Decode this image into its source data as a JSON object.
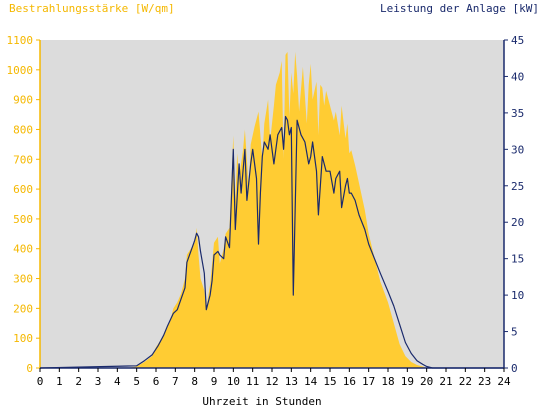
{
  "chart_data": {
    "type": "area",
    "left_axis_title": "Bestrahlungsstärke [W/qm]",
    "right_axis_title": "Leistung der Anlage [kW]",
    "xlabel": "Uhrzeit in Stunden",
    "x_range": [
      0,
      24
    ],
    "x_ticks": [
      0,
      1,
      2,
      3,
      4,
      5,
      6,
      7,
      8,
      9,
      10,
      11,
      12,
      13,
      14,
      15,
      16,
      17,
      18,
      19,
      20,
      21,
      22,
      23,
      24
    ],
    "y_left_range": [
      0,
      1100
    ],
    "y_left_ticks": [
      0,
      100,
      200,
      300,
      400,
      500,
      600,
      700,
      800,
      900,
      1000,
      1100
    ],
    "y_right_range": [
      0,
      45
    ],
    "y_right_ticks": [
      0,
      5,
      10,
      15,
      20,
      25,
      30,
      35,
      40,
      45
    ],
    "grid": false,
    "colors": {
      "irradiance": "#ffcc33",
      "power": "#1a2a6c",
      "plot_bg": "#dcdcdc",
      "left_axis": "#f5b800",
      "right_axis": "#1a2a6c"
    },
    "series": [
      {
        "name": "Bestrahlungsstärke [W/qm]",
        "axis": "left",
        "x": [
          0,
          4.5,
          5.0,
          5.4,
          5.8,
          6.0,
          6.3,
          6.5,
          6.7,
          6.9,
          7.1,
          7.3,
          7.5,
          7.6,
          7.8,
          8.0,
          8.1,
          8.2,
          8.3,
          8.5,
          8.6,
          8.8,
          8.9,
          9.0,
          9.2,
          9.3,
          9.5,
          9.6,
          9.8,
          10.0,
          10.1,
          10.2,
          10.3,
          10.5,
          10.6,
          10.8,
          10.9,
          11.1,
          11.3,
          11.5,
          11.6,
          11.8,
          11.9,
          12.1,
          12.2,
          12.4,
          12.5,
          12.6,
          12.7,
          12.8,
          12.9,
          13.0,
          13.1,
          13.2,
          13.3,
          13.4,
          13.6,
          13.8,
          13.9,
          14.0,
          14.1,
          14.3,
          14.4,
          14.5,
          14.6,
          14.7,
          14.8,
          15.0,
          15.2,
          15.3,
          15.5,
          15.6,
          15.8,
          15.9,
          16.0,
          16.1,
          16.3,
          16.5,
          16.8,
          17.0,
          17.3,
          17.6,
          18.0,
          18.3,
          18.6,
          18.9,
          19.2,
          19.5,
          19.8,
          20.0,
          20.3,
          20.6,
          21.0,
          24
        ],
        "y": [
          0,
          0,
          5,
          20,
          40,
          70,
          100,
          130,
          150,
          200,
          220,
          250,
          300,
          380,
          400,
          420,
          470,
          380,
          300,
          260,
          200,
          280,
          350,
          420,
          440,
          350,
          400,
          450,
          470,
          780,
          560,
          720,
          640,
          730,
          800,
          600,
          750,
          810,
          860,
          700,
          820,
          900,
          760,
          880,
          950,
          990,
          1030,
          700,
          1050,
          1060,
          840,
          990,
          920,
          1060,
          980,
          860,
          1010,
          820,
          950,
          1020,
          900,
          960,
          780,
          950,
          940,
          880,
          930,
          880,
          830,
          860,
          780,
          880,
          770,
          820,
          720,
          730,
          680,
          620,
          530,
          450,
          370,
          290,
          220,
          150,
          80,
          40,
          20,
          10,
          5,
          0,
          0,
          0,
          0,
          0
        ]
      },
      {
        "name": "Leistung der Anlage [kW]",
        "axis": "right",
        "x": [
          0,
          5.0,
          5.4,
          5.8,
          6.1,
          6.4,
          6.6,
          6.9,
          7.1,
          7.3,
          7.5,
          7.6,
          7.8,
          8.0,
          8.1,
          8.2,
          8.3,
          8.5,
          8.6,
          8.8,
          8.9,
          9.0,
          9.2,
          9.3,
          9.5,
          9.6,
          9.8,
          10.0,
          10.1,
          10.3,
          10.4,
          10.6,
          10.7,
          10.9,
          11.0,
          11.2,
          11.3,
          11.4,
          11.5,
          11.6,
          11.8,
          11.9,
          12.1,
          12.3,
          12.5,
          12.6,
          12.7,
          12.8,
          12.9,
          13.0,
          13.1,
          13.3,
          13.5,
          13.7,
          13.9,
          14.0,
          14.1,
          14.3,
          14.4,
          14.6,
          14.8,
          15.0,
          15.2,
          15.3,
          15.5,
          15.6,
          15.8,
          15.9,
          16.0,
          16.1,
          16.3,
          16.5,
          16.8,
          17.0,
          17.3,
          17.6,
          18.0,
          18.3,
          18.6,
          18.9,
          19.2,
          19.5,
          19.8,
          20.0,
          20.3,
          20.6,
          21.0,
          24
        ],
        "y": [
          0,
          0.3,
          1,
          1.8,
          3,
          4.5,
          5.8,
          7.5,
          8,
          9.5,
          11,
          14.5,
          16,
          17.5,
          18.5,
          18,
          16,
          13,
          8,
          10,
          12,
          15.5,
          16,
          15.5,
          15,
          18,
          16.5,
          30,
          19,
          28,
          24,
          30,
          23,
          28,
          30,
          26,
          17,
          24,
          29,
          31,
          30,
          32,
          28,
          32,
          33,
          30,
          34.5,
          34,
          32,
          33,
          10,
          34,
          32,
          31,
          28,
          29,
          31,
          27,
          21,
          29,
          27,
          27,
          24,
          26,
          27,
          22,
          25,
          26,
          24,
          24,
          23,
          21,
          19,
          17,
          15,
          13,
          10.5,
          8.5,
          6,
          3.5,
          2,
          1,
          0.5,
          0.2,
          0,
          0,
          0,
          0
        ]
      }
    ]
  }
}
